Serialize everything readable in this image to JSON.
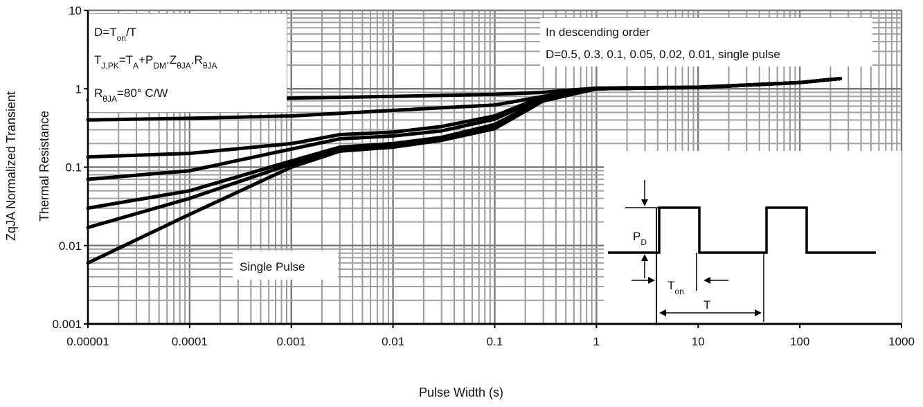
{
  "chart_data": {
    "type": "line",
    "xlabel": "Pulse Width (s)",
    "ylabel_line1": "ZqJA Normalized Transient",
    "ylabel_line2": "Thermal Resistance",
    "x_scale": "log",
    "y_scale": "log",
    "xlim": [
      1e-05,
      1000
    ],
    "ylim": [
      0.001,
      10
    ],
    "grid": true,
    "x_tick_labels": [
      "0.00001",
      "0.0001",
      "0.001",
      "0.01",
      "0.1",
      "1",
      "10",
      "100",
      "1000"
    ],
    "y_tick_labels": [
      "0.001",
      "0.01",
      "0.1",
      "1",
      "10"
    ],
    "annotations": {
      "formula_box": {
        "duty": {
          "base": "D=T",
          "sub": "on",
          "tail": "/T"
        },
        "tj": [
          {
            "t": "T",
            "s": ""
          },
          {
            "t": "",
            "s": "J,PK"
          },
          {
            "t": "=T",
            "s": ""
          },
          {
            "t": "",
            "s": "A"
          },
          {
            "t": "+P",
            "s": ""
          },
          {
            "t": "",
            "s": "DM"
          },
          {
            "t": ".Z",
            "s": ""
          },
          {
            "t": "",
            "s": "θJA"
          },
          {
            "t": ".R",
            "s": ""
          },
          {
            "t": "",
            "s": "θJA"
          }
        ],
        "r": {
          "base": "R",
          "sub": "θJA",
          "tail": "=80°  C/W"
        }
      },
      "order_line1": "In descending order",
      "order_line2": "D=0.5, 0.3, 0.1, 0.05, 0.02, 0.01, single pulse",
      "single_pulse_label": "Single Pulse",
      "inset": {
        "pd_label": {
          "base": "P",
          "sub": "D"
        },
        "ton_label": {
          "base": "T",
          "sub": "on"
        },
        "t_label": "T"
      }
    },
    "series": [
      {
        "x": [
          1e-05,
          0.0001,
          0.001,
          0.01,
          0.1,
          0.3,
          1,
          10,
          100,
          250
        ],
        "y": [
          0.72,
          0.74,
          0.76,
          0.8,
          0.85,
          0.9,
          1.02,
          1.05,
          1.2,
          1.35
        ]
      },
      {
        "x": [
          1e-05,
          0.0001,
          0.001,
          0.01,
          0.1,
          0.3,
          1,
          10,
          100,
          250
        ],
        "y": [
          0.4,
          0.42,
          0.45,
          0.53,
          0.62,
          0.8,
          1.01,
          1.04,
          1.2,
          1.35
        ]
      },
      {
        "x": [
          1e-05,
          0.0001,
          0.001,
          0.003,
          0.01,
          0.03,
          0.1,
          0.3,
          1,
          10,
          100,
          250
        ],
        "y": [
          0.135,
          0.15,
          0.2,
          0.26,
          0.28,
          0.33,
          0.45,
          0.8,
          1.0,
          1.04,
          1.2,
          1.35
        ]
      },
      {
        "x": [
          1e-05,
          0.0001,
          0.001,
          0.003,
          0.01,
          0.03,
          0.1,
          0.3,
          1,
          10,
          100,
          250
        ],
        "y": [
          0.07,
          0.09,
          0.17,
          0.23,
          0.25,
          0.29,
          0.41,
          0.78,
          1.0,
          1.04,
          1.2,
          1.35
        ]
      },
      {
        "x": [
          1e-05,
          0.0001,
          0.001,
          0.003,
          0.01,
          0.03,
          0.1,
          0.3,
          1,
          10,
          100,
          250
        ],
        "y": [
          0.03,
          0.05,
          0.12,
          0.18,
          0.2,
          0.24,
          0.35,
          0.74,
          1.0,
          1.04,
          1.2,
          1.35
        ]
      },
      {
        "x": [
          1e-05,
          0.0001,
          0.001,
          0.003,
          0.01,
          0.03,
          0.1,
          0.3,
          1,
          10,
          100,
          250
        ],
        "y": [
          0.017,
          0.04,
          0.11,
          0.17,
          0.19,
          0.23,
          0.33,
          0.72,
          1.0,
          1.04,
          1.2,
          1.35
        ]
      },
      {
        "x": [
          1e-05,
          0.0001,
          0.001,
          0.003,
          0.01,
          0.03,
          0.1,
          0.3,
          1,
          10,
          100,
          250
        ],
        "y": [
          0.006,
          0.025,
          0.1,
          0.16,
          0.18,
          0.22,
          0.31,
          0.7,
          1.0,
          1.04,
          1.2,
          1.35
        ]
      }
    ]
  }
}
